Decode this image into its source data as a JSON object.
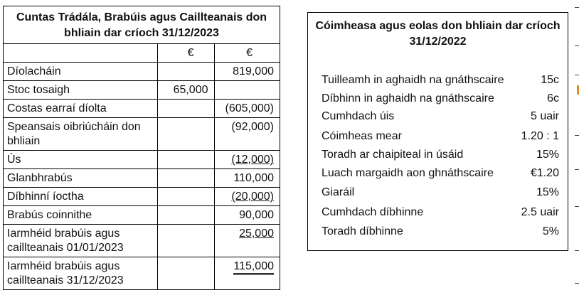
{
  "left_panel": {
    "title": "Cuntas Trádála, Brabúis agus Caillteanais don bhliain dar críoch 31/12/2023",
    "currency_col1": "€",
    "currency_col2": "€",
    "rows": [
      {
        "label": "Díolacháin",
        "col1": "",
        "col2": "819,000"
      },
      {
        "label": "Stoc tosaigh",
        "col1": "65,000",
        "col2": ""
      },
      {
        "label": "Costas earraí díolta",
        "col1": "",
        "col2": "(605,000)"
      },
      {
        "label": "Speansais oibriúcháin don bhliain",
        "col1": "",
        "col2": "(92,000)"
      },
      {
        "label": "Ús",
        "col1": "",
        "col2": "(12,000)"
      },
      {
        "label": "Glanbhrabús",
        "col1": "",
        "col2": "110,000"
      },
      {
        "label": "Díbhinní íoctha",
        "col1": "",
        "col2": "(20,000)"
      },
      {
        "label": "Brabús coinnithe",
        "col1": "",
        "col2": "90,000"
      },
      {
        "label": "Iarmhéid brabúis agus caillteanais 01/01/2023",
        "col1": "",
        "col2": "25,000"
      },
      {
        "label": "Iarmhéid brabúis agus caillteanais 31/12/2023",
        "col1": "",
        "col2": "115,000"
      }
    ]
  },
  "right_panel": {
    "title": "Cóimheasa agus eolas don bhliain dar críoch 31/12/2022",
    "ratios": [
      {
        "label": "Tuilleamh in aghaidh na gnáthscaire",
        "value": "15c"
      },
      {
        "label": "Díbhinn in aghaidh na gnáthscaire",
        "value": "6c"
      },
      {
        "label": "Cumhdach úis",
        "value": "5 uair"
      },
      {
        "label": "Cóimheas mear",
        "value": "1.20 : 1"
      },
      {
        "label": "Toradh ar chaipiteal in úsáid",
        "value": "15%"
      },
      {
        "label": "Luach margaidh aon ghnáthscaire",
        "value": "€1.20"
      },
      {
        "label": "Giaráil",
        "value": "15%"
      },
      {
        "label": "Cumhdach díbhinne",
        "value": "2.5 uair"
      },
      {
        "label": "Toradh díbhinne",
        "value": "5%"
      }
    ]
  }
}
